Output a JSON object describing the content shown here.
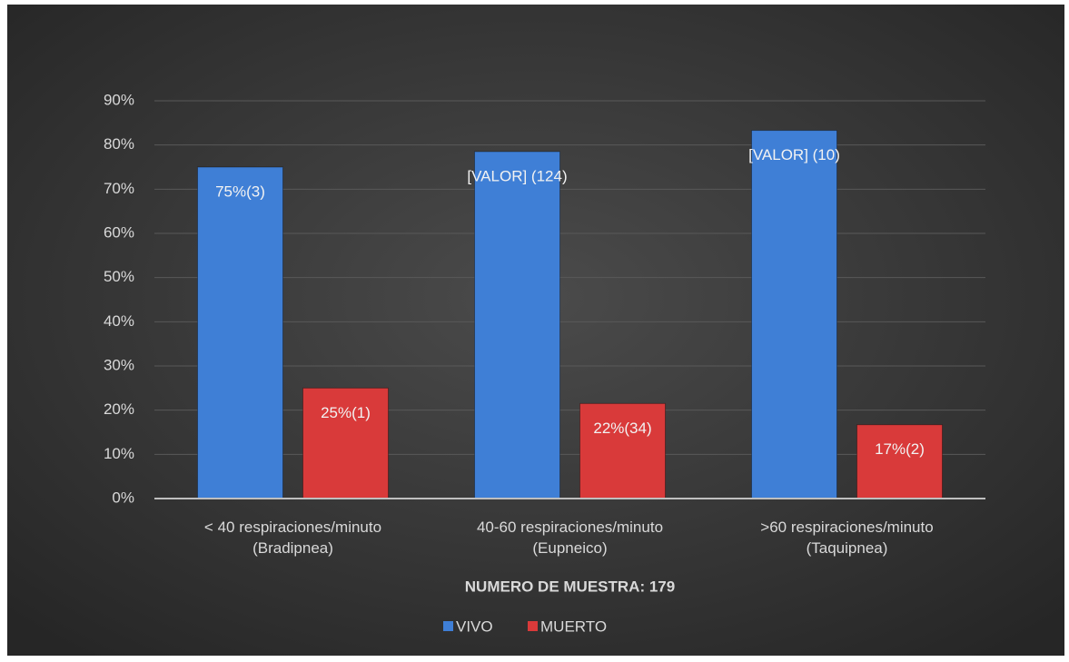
{
  "chart_data": {
    "type": "bar",
    "categories": [
      "< 40 respiraciones/minuto\n(Bradipnea)",
      "40-60 respiraciones/minuto\n(Eupneico)",
      ">60 respiraciones/minuto\n(Taquipnea)"
    ],
    "series": [
      {
        "name": "VIVO",
        "color": "#3f7fd6",
        "values": [
          75,
          78.5,
          83.3
        ],
        "value_labels": [
          "75%(3)",
          "[VALOR] (124)",
          "[VALOR] (10)"
        ]
      },
      {
        "name": "MUERTO",
        "color": "#d93a3a",
        "values": [
          25,
          21.5,
          16.7
        ],
        "value_labels": [
          "25%(1)",
          "22%(34)",
          "17%(2)"
        ]
      }
    ],
    "x_label": "NUMERO DE MUESTRA: 179",
    "ylim": [
      0,
      90
    ],
    "yticks": [
      {
        "value": 0,
        "label": "0%"
      },
      {
        "value": 10,
        "label": "10%"
      },
      {
        "value": 20,
        "label": "20%"
      },
      {
        "value": 30,
        "label": "30%"
      },
      {
        "value": 40,
        "label": "40%"
      },
      {
        "value": 50,
        "label": "50%"
      },
      {
        "value": 60,
        "label": "60%"
      },
      {
        "value": 70,
        "label": "70%"
      },
      {
        "value": 80,
        "label": "80%"
      },
      {
        "value": 90,
        "label": "90%"
      }
    ],
    "grid": true,
    "legend": "bottom"
  }
}
